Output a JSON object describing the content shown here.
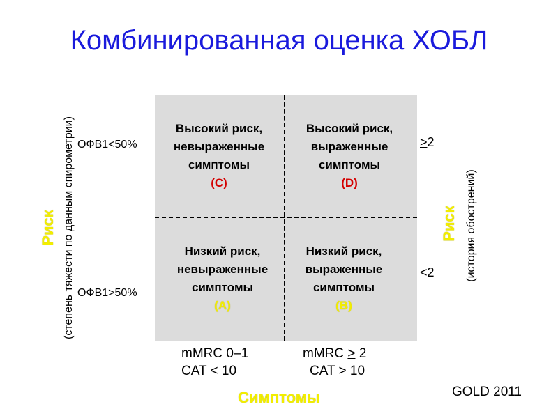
{
  "title": "Комбинированная оценка ХОБЛ",
  "cells": {
    "c": {
      "line1": "Высокий риск,",
      "line2": "невыраженные",
      "line3": "симптомы",
      "code": "(C)"
    },
    "d": {
      "line1": "Высокий риск,",
      "line2": "выраженные",
      "line3": "симптомы",
      "code": "(D)"
    },
    "a": {
      "line1": "Низкий риск,",
      "line2": "невыраженные",
      "line3": "симптомы",
      "code": "(A)"
    },
    "b": {
      "line1": "Низкий риск,",
      "line2": "выраженные",
      "line3": "симптомы",
      "code": "(B)"
    }
  },
  "left_axis": {
    "title": "Риск",
    "subtitle": "(степень тяжести по данным спирометрии)",
    "top_label": "ОФВ1<50%",
    "bottom_label": "ОФВ1>50%"
  },
  "right_axis": {
    "title": "Риск",
    "subtitle": "(история  обострений)",
    "top_label_symbol": ">",
    "top_label_value": "2",
    "bottom_label": "<2"
  },
  "bottom_axis": {
    "title": "Симптомы",
    "left_line1": "mMRC 0–1",
    "left_line2": "CAT < 10",
    "right_line1_prefix": "mMRC ",
    "right_line1_symbol": ">",
    "right_line1_value": " 2",
    "right_line2_prefix": "CAT ",
    "right_line2_symbol": ">",
    "right_line2_value": " 10"
  },
  "source": "GOLD 2011",
  "colors": {
    "title": "#1a1adc",
    "accent_red": "#d40000",
    "accent_yellow": "#f2ee00",
    "grid_bg": "#dcdcdc"
  }
}
